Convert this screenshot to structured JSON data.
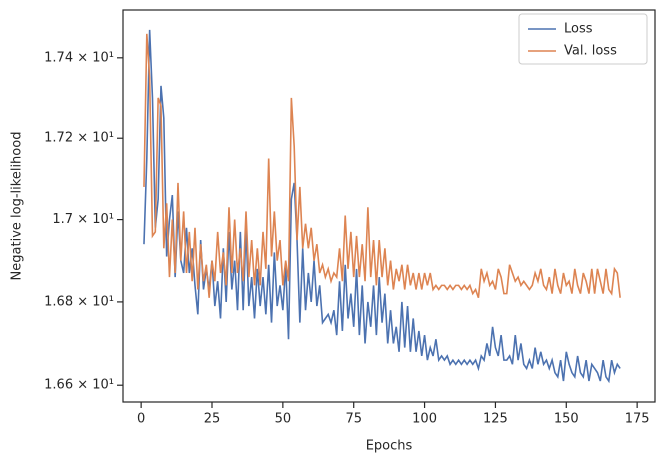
{
  "chart_data": {
    "type": "line",
    "xlabel": "Epochs",
    "ylabel": "Negative log-likelihood",
    "x": [
      1,
      2,
      3,
      4,
      5,
      6,
      7,
      8,
      9,
      10,
      11,
      12,
      13,
      14,
      15,
      16,
      17,
      18,
      19,
      20,
      21,
      22,
      23,
      24,
      25,
      26,
      27,
      28,
      29,
      30,
      31,
      32,
      33,
      34,
      35,
      36,
      37,
      38,
      39,
      40,
      41,
      42,
      43,
      44,
      45,
      46,
      47,
      48,
      49,
      50,
      51,
      52,
      53,
      54,
      55,
      56,
      57,
      58,
      59,
      60,
      61,
      62,
      63,
      64,
      65,
      66,
      67,
      68,
      69,
      70,
      71,
      72,
      73,
      74,
      75,
      76,
      77,
      78,
      79,
      80,
      81,
      82,
      83,
      84,
      85,
      86,
      87,
      88,
      89,
      90,
      91,
      92,
      93,
      94,
      95,
      96,
      97,
      98,
      99,
      100,
      101,
      102,
      103,
      104,
      105,
      106,
      107,
      108,
      109,
      110,
      111,
      112,
      113,
      114,
      115,
      116,
      117,
      118,
      119,
      120,
      121,
      122,
      123,
      124,
      125,
      126,
      127,
      128,
      129,
      130,
      131,
      132,
      133,
      134,
      135,
      136,
      137,
      138,
      139,
      140,
      141,
      142,
      143,
      144,
      145,
      146,
      147,
      148,
      149,
      150,
      151,
      152,
      153,
      154,
      155,
      156,
      157,
      158,
      159,
      160,
      161,
      162,
      163,
      164,
      165,
      166,
      167,
      168,
      169
    ],
    "series": [
      {
        "name": "Loss",
        "color": "#4c72b0",
        "values": [
          16.94,
          17.15,
          17.47,
          17.3,
          16.98,
          17.05,
          17.33,
          17.25,
          16.91,
          17.0,
          17.06,
          16.86,
          17.02,
          16.9,
          16.87,
          16.98,
          16.87,
          16.93,
          16.84,
          16.77,
          16.95,
          16.83,
          16.88,
          16.83,
          16.9,
          16.79,
          16.85,
          16.76,
          16.93,
          16.8,
          16.97,
          16.83,
          16.9,
          16.78,
          16.97,
          16.78,
          16.98,
          16.79,
          16.86,
          16.76,
          16.88,
          16.79,
          16.86,
          16.77,
          16.89,
          16.75,
          16.92,
          16.79,
          16.84,
          16.78,
          16.89,
          16.71,
          17.05,
          17.09,
          16.95,
          16.75,
          16.93,
          16.78,
          16.87,
          16.8,
          16.9,
          16.79,
          16.84,
          16.75,
          16.76,
          16.77,
          16.75,
          16.78,
          16.72,
          16.85,
          16.73,
          16.89,
          16.76,
          16.82,
          16.74,
          16.88,
          16.72,
          16.84,
          16.7,
          16.8,
          16.74,
          16.84,
          16.72,
          16.86,
          16.75,
          16.82,
          16.7,
          16.78,
          16.7,
          16.74,
          16.68,
          16.8,
          16.69,
          16.79,
          16.68,
          16.76,
          16.68,
          16.73,
          16.67,
          16.72,
          16.66,
          16.69,
          16.67,
          16.71,
          16.66,
          16.67,
          16.66,
          16.67,
          16.65,
          16.66,
          16.65,
          16.66,
          16.65,
          16.66,
          16.65,
          16.66,
          16.65,
          16.66,
          16.64,
          16.67,
          16.66,
          16.7,
          16.67,
          16.74,
          16.69,
          16.67,
          16.72,
          16.66,
          16.66,
          16.67,
          16.65,
          16.72,
          16.66,
          16.7,
          16.65,
          16.64,
          16.66,
          16.64,
          16.69,
          16.65,
          16.68,
          16.65,
          16.66,
          16.64,
          16.66,
          16.63,
          16.62,
          16.66,
          16.61,
          16.68,
          16.65,
          16.63,
          16.62,
          16.67,
          16.63,
          16.62,
          16.66,
          16.61,
          16.65,
          16.64,
          16.63,
          16.61,
          16.66,
          16.62,
          16.61,
          16.66,
          16.63,
          16.65,
          16.64
        ]
      },
      {
        "name": "Val. loss",
        "color": "#dd8452",
        "values": [
          17.08,
          17.46,
          17.35,
          16.96,
          16.97,
          17.3,
          17.28,
          16.93,
          17.04,
          16.86,
          17.0,
          16.87,
          17.09,
          16.9,
          17.02,
          16.87,
          16.97,
          16.85,
          16.98,
          16.83,
          16.94,
          16.85,
          16.89,
          16.81,
          16.9,
          16.85,
          16.97,
          16.87,
          16.92,
          16.84,
          17.03,
          16.87,
          17.0,
          16.87,
          16.93,
          16.85,
          17.02,
          16.86,
          16.95,
          16.84,
          16.93,
          16.84,
          16.97,
          16.88,
          17.15,
          16.91,
          17.02,
          16.9,
          16.95,
          16.84,
          16.9,
          16.85,
          17.3,
          17.18,
          16.95,
          17.08,
          16.93,
          16.99,
          16.93,
          16.98,
          16.9,
          16.94,
          16.87,
          16.89,
          16.86,
          16.88,
          16.85,
          16.87,
          16.86,
          16.93,
          16.85,
          17.01,
          16.88,
          16.97,
          16.86,
          16.96,
          16.86,
          16.94,
          16.85,
          17.03,
          16.86,
          16.95,
          16.84,
          16.95,
          16.86,
          16.93,
          16.84,
          16.9,
          16.83,
          16.88,
          16.85,
          16.89,
          16.83,
          16.89,
          16.84,
          16.87,
          16.83,
          16.87,
          16.83,
          16.87,
          16.84,
          16.87,
          16.83,
          16.84,
          16.83,
          16.84,
          16.84,
          16.83,
          16.84,
          16.83,
          16.84,
          16.84,
          16.83,
          16.84,
          16.83,
          16.84,
          16.82,
          16.83,
          16.81,
          16.88,
          16.85,
          16.87,
          16.84,
          16.85,
          16.83,
          16.88,
          16.86,
          16.82,
          16.82,
          16.89,
          16.87,
          16.85,
          16.86,
          16.84,
          16.85,
          16.84,
          16.83,
          16.84,
          16.87,
          16.85,
          16.88,
          16.84,
          16.83,
          16.86,
          16.82,
          16.88,
          16.84,
          16.82,
          16.87,
          16.84,
          16.85,
          16.82,
          16.88,
          16.84,
          16.82,
          16.87,
          16.85,
          16.82,
          16.88,
          16.82,
          16.88,
          16.85,
          16.82,
          16.88,
          16.83,
          16.82,
          16.88,
          16.87,
          16.81
        ]
      }
    ],
    "xlim": [
      -6.4,
      181.3
    ],
    "xticks": [
      0,
      25,
      50,
      75,
      100,
      125,
      150,
      175
    ],
    "ylim": [
      16.56,
      17.52
    ],
    "ylog": true,
    "yticks": [
      {
        "value": 16.6,
        "label": "1.66 × 10¹"
      },
      {
        "value": 16.8,
        "label": "1.68 × 10¹"
      },
      {
        "value": 17.0,
        "label": "1.7 × 10¹"
      },
      {
        "value": 17.2,
        "label": "1.72 × 10¹"
      },
      {
        "value": 17.4,
        "label": "1.74 × 10¹"
      }
    ],
    "legend": "upper right"
  }
}
